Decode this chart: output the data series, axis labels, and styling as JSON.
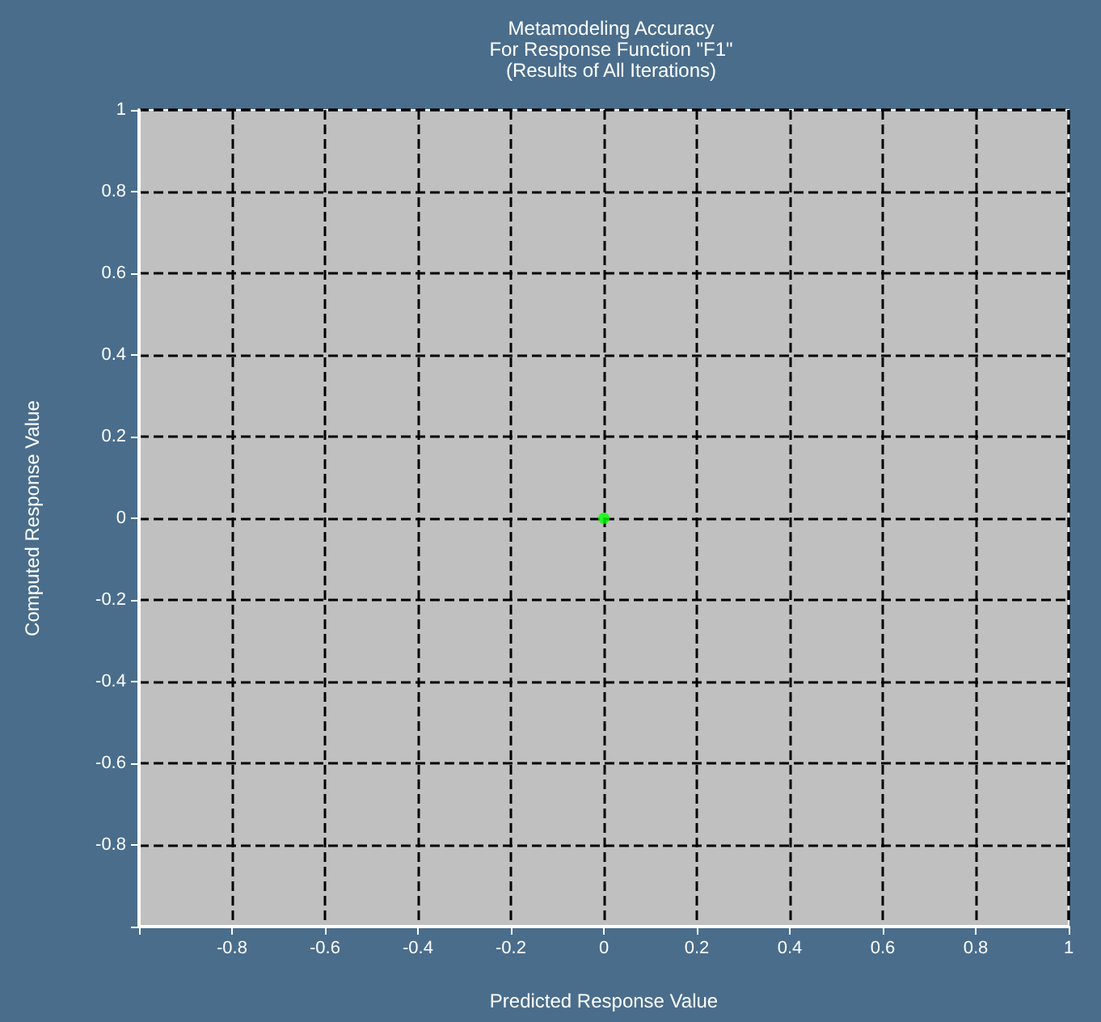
{
  "chart_data": {
    "type": "scatter",
    "title": "Metamodeling Accuracy\nFor Response Function \"F1\"\n(Results of All Iterations)",
    "xlabel": "Predicted Response Value",
    "ylabel": "Computed Response Value",
    "x": [
      0
    ],
    "series": [
      {
        "color": "#00ff00",
        "values": [
          0
        ]
      }
    ],
    "xlim": [
      -1,
      1
    ],
    "ylim": [
      -1,
      1
    ],
    "xticks": [
      {
        "value": -1,
        "label": null
      },
      -0.8,
      -0.6,
      -0.4,
      -0.2,
      0,
      0.2,
      0.4,
      0.6,
      0.8,
      1
    ],
    "yticks": [
      {
        "value": -1,
        "label": null
      },
      -0.8,
      -0.6,
      -0.4,
      -0.2,
      0,
      0.2,
      0.4,
      0.6,
      0.8,
      1
    ],
    "grid": true,
    "marker": "circle"
  }
}
